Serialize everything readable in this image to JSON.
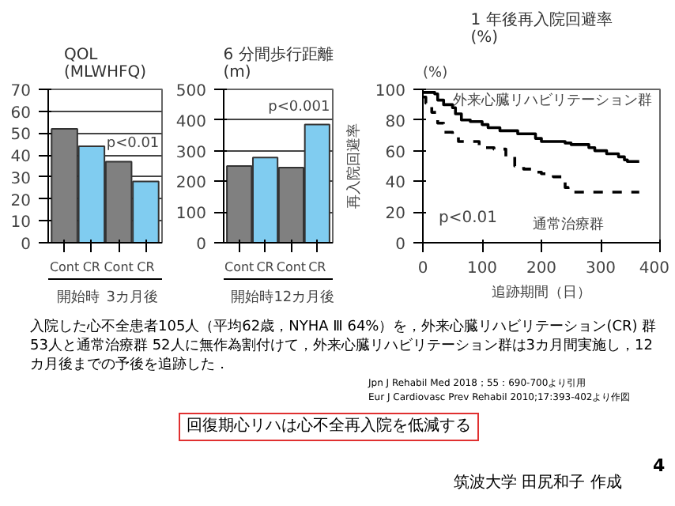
{
  "chart_data": [
    {
      "type": "bar",
      "title": "QOL",
      "subtitle": "(MLWHFQ)",
      "categories": [
        "Cont",
        "CR",
        "Cont",
        "CR"
      ],
      "values": [
        52,
        44,
        37,
        28
      ],
      "colors": [
        "#808080",
        "#80ccf0",
        "#808080",
        "#80ccf0"
      ],
      "ylim": [
        0,
        70
      ],
      "yticks": [
        0,
        10,
        20,
        30,
        40,
        50,
        60,
        70
      ],
      "grid": "y",
      "annotations": [
        "開始時",
        "3カ月後",
        "p<0.01"
      ]
    },
    {
      "type": "bar",
      "title": "6 分間歩行距離",
      "subtitle": "(m)",
      "categories": [
        "Cont",
        "CR",
        "Cont",
        "CR"
      ],
      "values": [
        250,
        278,
        245,
        385
      ],
      "colors": [
        "#808080",
        "#80ccf0",
        "#808080",
        "#80ccf0"
      ],
      "ylim": [
        0,
        500
      ],
      "yticks": [
        0,
        100,
        200,
        300,
        400,
        500
      ],
      "grid": "y",
      "annotations": [
        "開始時",
        "12カ月後",
        "p<0.001"
      ]
    },
    {
      "type": "step",
      "title": "1 年後再入院回避率",
      "subtitle": "(%)",
      "xlabel": "追跡期間（日）",
      "ylabel": "再入院回避率",
      "xlim": [
        0,
        400
      ],
      "xticks": [
        0,
        100,
        200,
        300,
        400
      ],
      "ylim": [
        0,
        100
      ],
      "yticks": [
        0,
        20,
        40,
        60,
        80,
        100
      ],
      "series": [
        {
          "name": "外来心臓リハビリテーション群",
          "color": "#000000",
          "line_style": "solid",
          "x": [
            0,
            10,
            20,
            25,
            35,
            50,
            55,
            65,
            80,
            100,
            110,
            130,
            160,
            190,
            200,
            240,
            250,
            280,
            290,
            310,
            330,
            340,
            345,
            365
          ],
          "values": [
            98,
            98,
            97,
            93,
            90,
            88,
            84,
            80,
            79,
            77,
            75,
            73,
            71,
            68,
            66,
            65,
            64,
            62,
            60,
            58,
            56,
            54,
            53,
            53
          ]
        },
        {
          "name": "通常治療群",
          "color": "#000000",
          "line_style": "dashed",
          "x": [
            0,
            5,
            15,
            25,
            35,
            50,
            60,
            95,
            120,
            140,
            155,
            170,
            185,
            200,
            220,
            235,
            240,
            245,
            365
          ],
          "values": [
            95,
            91,
            85,
            78,
            72,
            70,
            66,
            62,
            61,
            56,
            50,
            48,
            46,
            45,
            43,
            42,
            36,
            33,
            33
          ]
        }
      ],
      "annotations": [
        "(%)",
        "p<0.01"
      ]
    },
    {
      "type": "other",
      "annotations": [
        "入院した心不全患者105人（平均62歳，NYHA Ⅲ 64%）を，外来心臓リハビリテーション(CR) 群 53人と通常治療群 52人に無作為割付けて，外来心臓リハビリテーション群は3カ月間実施し，12カ月後までの予後を追跡した．",
        "Jpn J Rehabil Med 2018；55：690-700より引用",
        "Eur J Cardiovasc Prev Rehabil 2010;17:393-402より作図",
        "回復期心リハは心不全再入院を低減する",
        "筑波大学 田尻和子 作成",
        "4"
      ]
    }
  ]
}
